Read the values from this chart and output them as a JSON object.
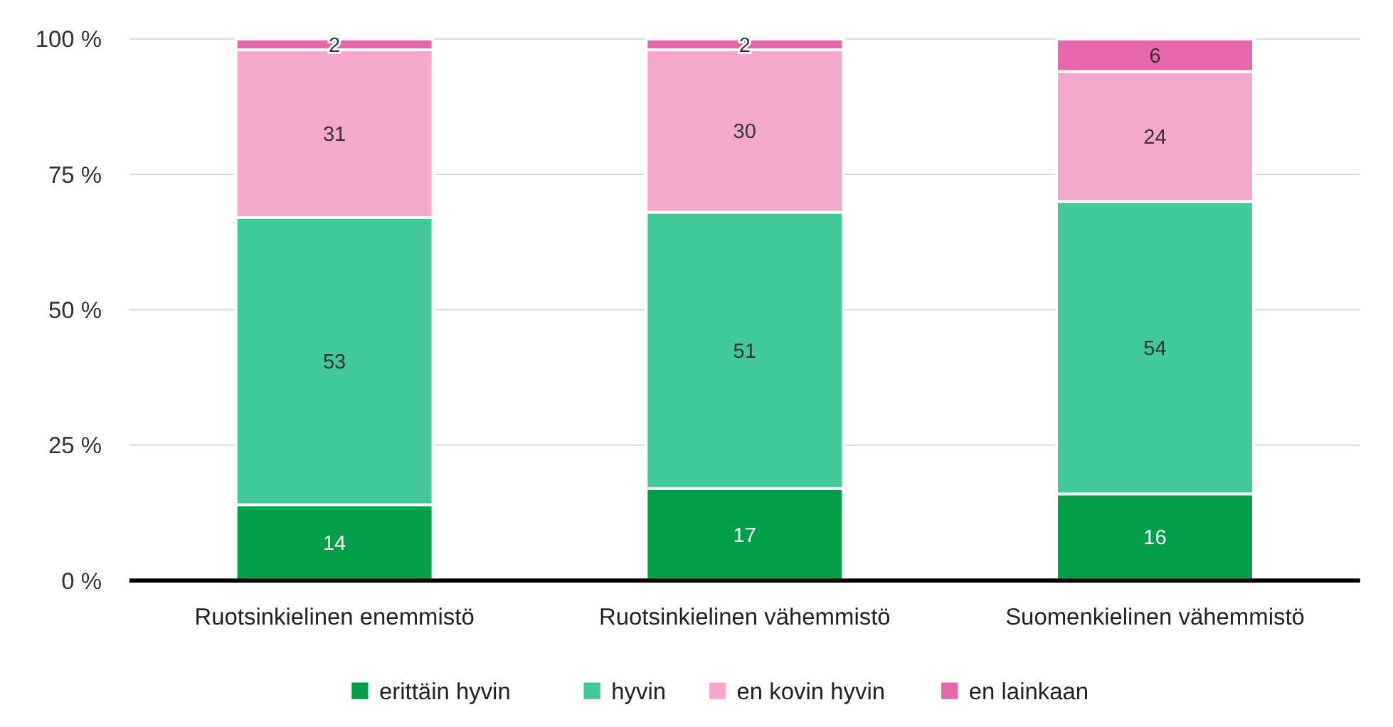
{
  "chart_data": {
    "type": "bar",
    "stacked": true,
    "categories": [
      "Ruotsinkielinen enemmistö",
      "Ruotsinkielinen vähemmistö",
      "Suomenkielinen vähemmistö"
    ],
    "series": [
      {
        "name": "erittäin hyvin",
        "color": "#00a04b",
        "values": [
          14,
          17,
          16
        ]
      },
      {
        "name": "hyvin",
        "color": "#42c99a",
        "values": [
          53,
          51,
          54
        ]
      },
      {
        "name": "en kovin hyvin",
        "color": "#f5a8ce",
        "values": [
          31,
          30,
          24
        ]
      },
      {
        "name": "en lainkaan",
        "color": "#e867ab",
        "values": [
          2,
          2,
          6
        ]
      }
    ],
    "ylim": [
      0,
      100
    ],
    "yticks": [
      {
        "value": 0,
        "label": "0 %"
      },
      {
        "value": 25,
        "label": "25 %"
      },
      {
        "value": 50,
        "label": "50 %"
      },
      {
        "value": 75,
        "label": "75 %"
      },
      {
        "value": 100,
        "label": "100 %"
      }
    ],
    "grid": "y",
    "legend": "bottom",
    "data_labels": true
  }
}
